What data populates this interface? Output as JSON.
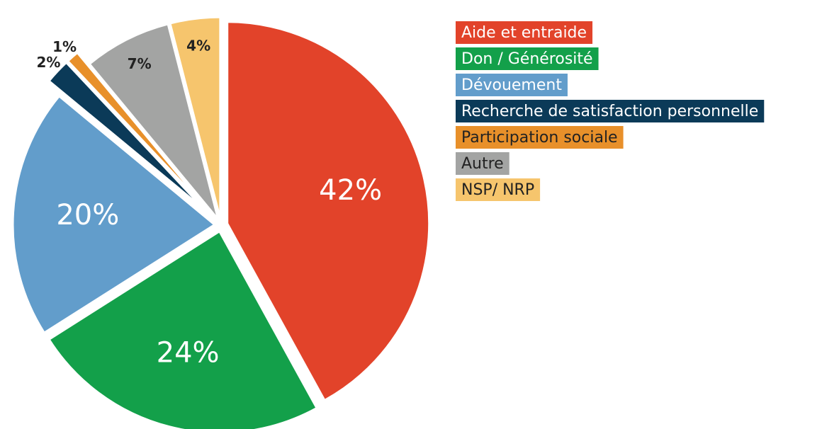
{
  "chart_data": {
    "type": "pie",
    "categories": [
      "Aide et entraide",
      "Don / Générosité",
      "Dévouement",
      "Recherche de satisfaction personnelle",
      "Participation sociale",
      "Autre",
      "NSP/ NRP"
    ],
    "values": [
      42,
      24,
      20,
      2,
      1,
      7,
      4
    ],
    "value_labels": [
      "42%",
      "24%",
      "20%",
      "2%",
      "1%",
      "7%",
      "4%"
    ],
    "colors": [
      "#e2432a",
      "#13a04a",
      "#629dcb",
      "#0b3a58",
      "#e8902a",
      "#a3a4a3",
      "#f6c56d"
    ]
  }
}
